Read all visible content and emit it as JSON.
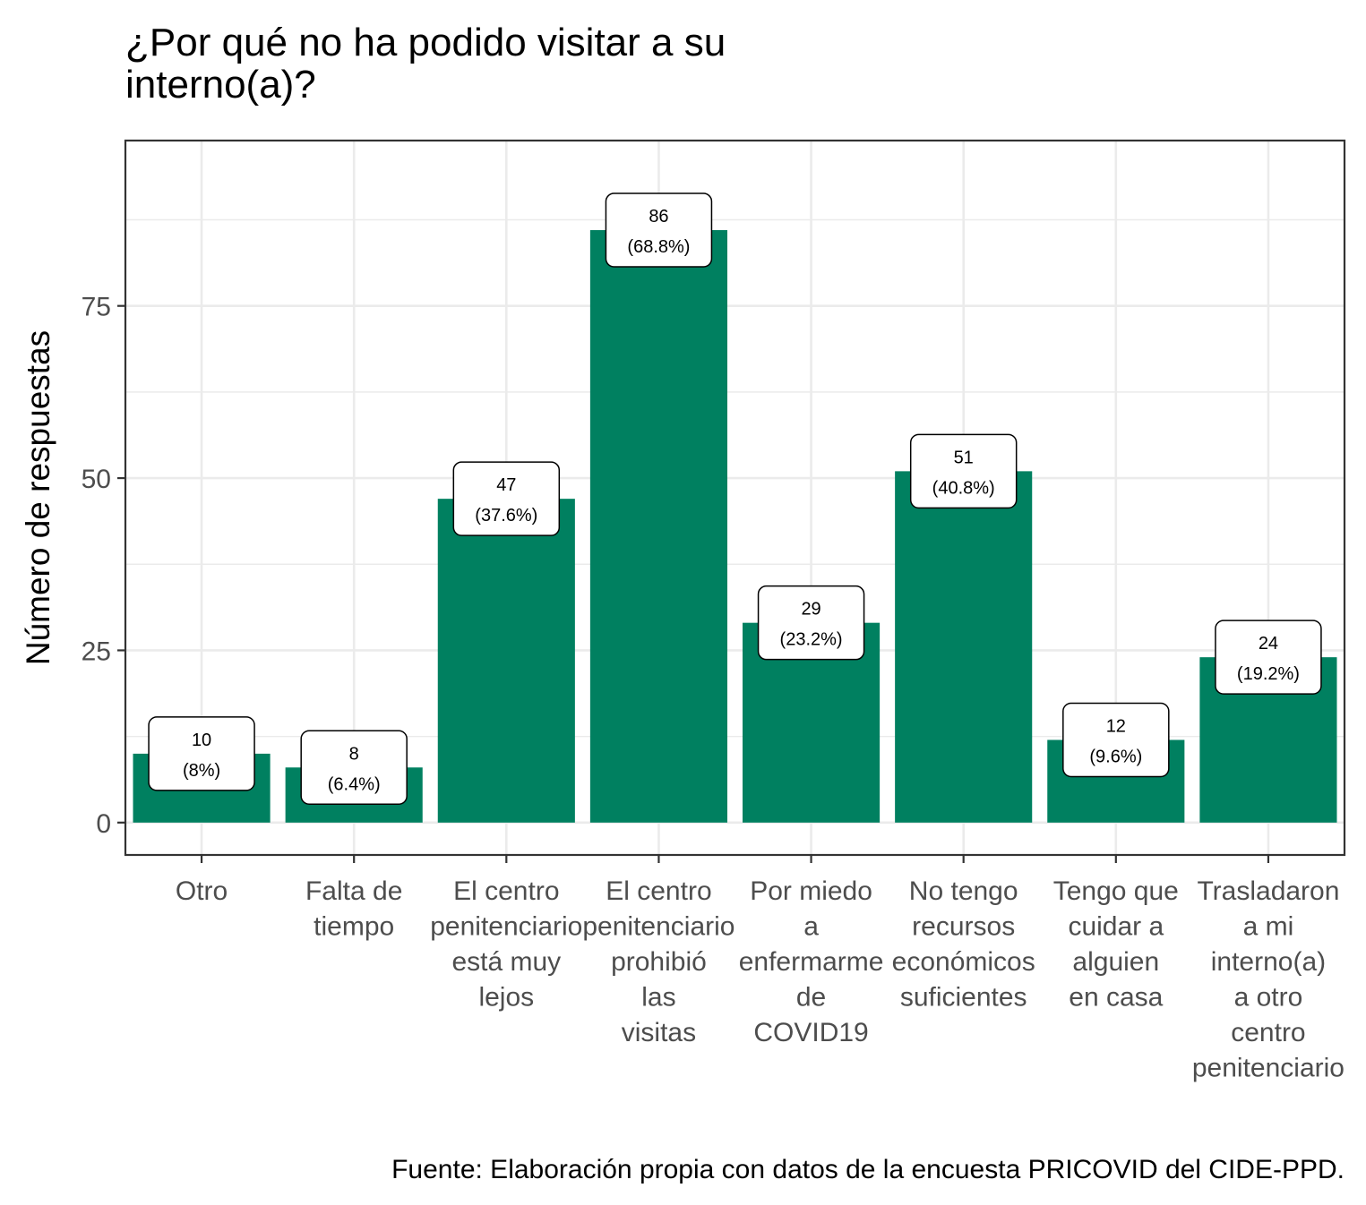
{
  "chart_data": {
    "type": "bar",
    "title_lines": [
      "¿Por qué no ha podido visitar a su",
      "interno(a)?"
    ],
    "ylabel": "Número de respuestas",
    "xlabel": "",
    "ylim": [
      -4.7,
      99
    ],
    "yticks": [
      0,
      25,
      50,
      75
    ],
    "ytick_labels": [
      "0",
      "25",
      "50",
      "75"
    ],
    "grid": true,
    "bar_color": "#008060",
    "categories": [
      [
        "Otro"
      ],
      [
        "Falta de",
        "tiempo"
      ],
      [
        "El centro",
        "penitenciario",
        "está muy",
        "lejos"
      ],
      [
        "El centro",
        "penitenciario",
        "prohibió",
        "las",
        "visitas"
      ],
      [
        "Por miedo",
        "a",
        "enfermarme",
        "de",
        "COVID19"
      ],
      [
        "No tengo",
        "recursos",
        "económicos",
        "suficientes"
      ],
      [
        "Tengo que",
        "cuidar a",
        "alguien",
        "en casa"
      ],
      [
        "Trasladaron",
        "a mi",
        "interno(a)",
        "a otro",
        "centro",
        "penitenciario"
      ]
    ],
    "values": [
      10,
      8,
      47,
      86,
      29,
      51,
      12,
      24
    ],
    "percent_labels": [
      "(8%)",
      "(6.4%)",
      "(37.6%)",
      "(68.8%)",
      "(23.2%)",
      "(40.8%)",
      "(9.6%)",
      "(19.2%)"
    ],
    "caption": "Fuente: Elaboración propia con datos de la encuesta PRICOVID del CIDE-PPD."
  }
}
